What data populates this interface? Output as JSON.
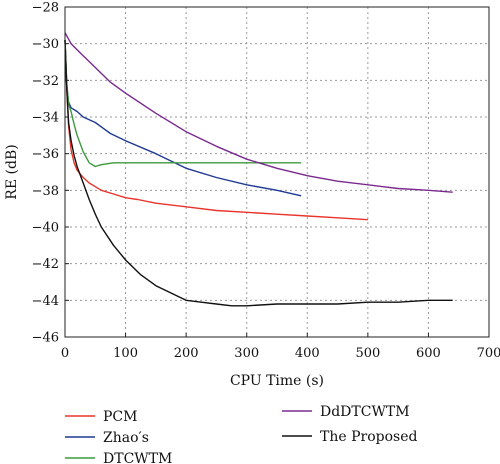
{
  "chart_data": {
    "type": "line",
    "xlabel": "CPU Time (s)",
    "ylabel": "RE (dB)",
    "xlim": [
      0,
      700
    ],
    "ylim": [
      -46,
      -28
    ],
    "xticks": [
      0,
      100,
      200,
      300,
      400,
      500,
      600,
      700
    ],
    "yticks": [
      -46,
      -44,
      -42,
      -40,
      -38,
      -36,
      -34,
      -32,
      -30,
      -28
    ],
    "grid": true,
    "legend_position": "bottom",
    "series": [
      {
        "name": "PCM",
        "color": "#e8342a",
        "x": [
          0,
          3,
          6,
          10,
          15,
          20,
          30,
          40,
          50,
          60,
          80,
          100,
          120,
          150,
          200,
          250,
          300,
          350,
          400,
          450,
          500
        ],
        "y": [
          -29.8,
          -32.5,
          -34.5,
          -35.8,
          -36.5,
          -36.9,
          -37.3,
          -37.6,
          -37.8,
          -38.0,
          -38.2,
          -38.4,
          -38.5,
          -38.7,
          -38.9,
          -39.1,
          -39.2,
          -39.3,
          -39.4,
          -39.5,
          -39.6
        ]
      },
      {
        "name": "Zhao′s",
        "color": "#1f3a93",
        "x": [
          0,
          3,
          6,
          10,
          20,
          30,
          50,
          75,
          100,
          150,
          200,
          250,
          300,
          350,
          390
        ],
        "y": [
          -29.8,
          -32.3,
          -33.2,
          -33.5,
          -33.7,
          -34.0,
          -34.3,
          -34.9,
          -35.3,
          -36.0,
          -36.8,
          -37.3,
          -37.7,
          -38.0,
          -38.3
        ]
      },
      {
        "name": "DTCWTM",
        "color": "#3c9a3c",
        "x": [
          0,
          3,
          6,
          10,
          15,
          20,
          30,
          40,
          50,
          60,
          80,
          100,
          150,
          200,
          250,
          300,
          350,
          390
        ],
        "y": [
          -29.8,
          -32.2,
          -33.3,
          -33.7,
          -34.4,
          -35.0,
          -35.9,
          -36.5,
          -36.7,
          -36.6,
          -36.5,
          -36.5,
          -36.5,
          -36.5,
          -36.5,
          -36.5,
          -36.5,
          -36.5
        ]
      },
      {
        "name": "DdDTCWTM",
        "color": "#7a2a8f",
        "x": [
          0,
          10,
          25,
          50,
          75,
          100,
          150,
          200,
          250,
          300,
          350,
          400,
          450,
          500,
          550,
          600,
          640
        ],
        "y": [
          -29.4,
          -30.0,
          -30.5,
          -31.3,
          -32.1,
          -32.7,
          -33.8,
          -34.8,
          -35.6,
          -36.3,
          -36.8,
          -37.2,
          -37.5,
          -37.7,
          -37.9,
          -38.0,
          -38.1
        ]
      },
      {
        "name": "The Proposed",
        "color": "#111111",
        "x": [
          0,
          3,
          6,
          10,
          15,
          20,
          30,
          40,
          50,
          60,
          80,
          100,
          125,
          150,
          175,
          200,
          225,
          250,
          275,
          300,
          350,
          400,
          450,
          500,
          550,
          600,
          640
        ],
        "y": [
          -29.8,
          -32.5,
          -34.3,
          -35.3,
          -36.1,
          -36.7,
          -37.6,
          -38.5,
          -39.3,
          -40.0,
          -41.0,
          -41.8,
          -42.6,
          -43.2,
          -43.6,
          -44.0,
          -44.1,
          -44.2,
          -44.3,
          -44.3,
          -44.2,
          -44.2,
          -44.2,
          -44.1,
          -44.1,
          -44.0,
          -44.0
        ]
      }
    ]
  }
}
